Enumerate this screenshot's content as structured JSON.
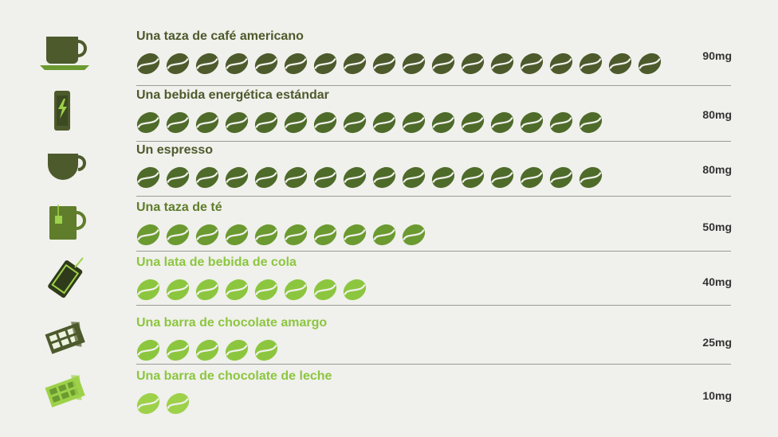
{
  "chart_data": {
    "type": "bar",
    "title": "",
    "unit": "mg",
    "categories": [
      "Una taza de café americano",
      "Una bebida energética estándar",
      "Un espresso",
      "Una taza de té",
      "Una lata de bebida de cola",
      "Una barra de chocolate amargo",
      "Una barra de chocolate de leche"
    ],
    "values": [
      90,
      80,
      80,
      50,
      40,
      25,
      10
    ],
    "value_labels": [
      "90mg",
      "80mg",
      "80mg",
      "50mg",
      "40mg",
      "25mg",
      "10mg"
    ],
    "icon_units": [
      18,
      16,
      16,
      10,
      8,
      5,
      2
    ],
    "icon_unit_value_mg": 5,
    "icons": [
      "coffee-cup-saucer-icon",
      "energy-drink-can-icon",
      "espresso-cup-icon",
      "tea-mug-icon",
      "cola-can-icon",
      "dark-chocolate-bar-icon",
      "milk-chocolate-bar-icon"
    ],
    "row_colors": [
      "#4d5a2c",
      "#4d5a2c",
      "#4d5a2c",
      "#5f7d2a",
      "#8cc63f",
      "#8cc63f",
      "#8cc63f"
    ],
    "bean_colors": [
      "#4d5a2c",
      "#4e6b2a",
      "#4e6b2a",
      "#6b9a30",
      "#8cc63f",
      "#8cc63f",
      "#9dd14a"
    ]
  }
}
